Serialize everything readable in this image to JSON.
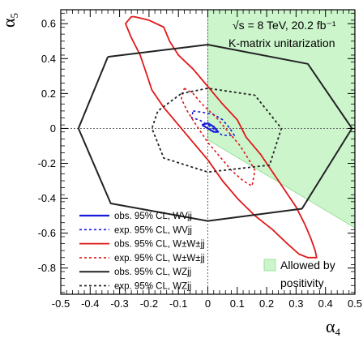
{
  "chart_data": {
    "type": "contour",
    "xlabel": "α4",
    "ylabel": "α5",
    "xlim": [
      -0.5,
      0.5
    ],
    "ylim": [
      -0.95,
      0.68
    ],
    "x_ticks": [
      -0.5,
      -0.4,
      -0.3,
      -0.2,
      -0.1,
      0,
      0.1,
      0.2,
      0.3,
      0.4,
      0.5
    ],
    "x_tick_labels": [
      "-0.5",
      "-0.4",
      "-0.3",
      "-0.2",
      "-0.1",
      "0",
      "0.1",
      "0.2",
      "0.3",
      "0.4",
      "0.5"
    ],
    "y_ticks": [
      -0.8,
      -0.6,
      -0.4,
      -0.2,
      0,
      0.2,
      0.4,
      0.6
    ],
    "y_tick_labels": [
      "-0.8",
      "-0.6",
      "-0.4",
      "-0.2",
      "0",
      "0.2",
      "0.4",
      "0.6"
    ],
    "annotations": {
      "energy": "√s = 8 TeV, 20.2 fb⁻¹",
      "method": "K-matrix unitarization",
      "allowed_label_1": "Allowed by",
      "allowed_label_2": "positivity"
    },
    "allowed_region": {
      "color": "#ccf5cc",
      "edge": "#8ed98e",
      "points": [
        [
          0,
          0.68
        ],
        [
          0.5,
          0.68
        ],
        [
          0.5,
          -0.57
        ],
        [
          0,
          -0.065
        ]
      ]
    },
    "series": [
      {
        "name": "obs. 95% CL, WVjj",
        "color": "#1a1adc",
        "dash": false,
        "width": 2.2,
        "points": [
          [
            -0.02,
            0.02
          ],
          [
            0,
            0.03
          ],
          [
            0.02,
            0.01
          ],
          [
            0.035,
            -0.02
          ],
          [
            0.02,
            -0.02
          ],
          [
            0,
            0.0
          ],
          [
            -0.02,
            0.02
          ]
        ]
      },
      {
        "name": "exp. 95% CL, WVjj",
        "color": "#1a1adc",
        "dash": true,
        "width": 1.6,
        "points": [
          [
            -0.05,
            0.1
          ],
          [
            -0.01,
            0.09
          ],
          [
            0.02,
            0.08
          ],
          [
            0.05,
            0.05
          ],
          [
            0.075,
            0.0
          ],
          [
            0.09,
            -0.04
          ],
          [
            0.05,
            -0.04
          ],
          [
            0.0,
            0.02
          ],
          [
            -0.03,
            0.05
          ],
          [
            -0.055,
            0.06
          ],
          [
            -0.05,
            0.1
          ]
        ]
      },
      {
        "name": "obs. 95% CL, W±W±jj",
        "color": "#e01818",
        "dash": false,
        "width": 1.8,
        "points": [
          [
            -0.25,
            0.64
          ],
          [
            -0.2,
            0.62
          ],
          [
            -0.15,
            0.58
          ],
          [
            -0.13,
            0.5
          ],
          [
            -0.1,
            0.42
          ],
          [
            -0.05,
            0.34
          ],
          [
            0.0,
            0.24
          ],
          [
            0.05,
            0.14
          ],
          [
            0.1,
            0.05
          ],
          [
            0.13,
            -0.05
          ],
          [
            0.18,
            -0.15
          ],
          [
            0.22,
            -0.25
          ],
          [
            0.26,
            -0.35
          ],
          [
            0.3,
            -0.45
          ],
          [
            0.33,
            -0.55
          ],
          [
            0.35,
            -0.63
          ],
          [
            0.365,
            -0.7
          ],
          [
            0.37,
            -0.74
          ],
          [
            0.34,
            -0.74
          ],
          [
            0.31,
            -0.72
          ],
          [
            0.27,
            -0.66
          ],
          [
            0.22,
            -0.58
          ],
          [
            0.16,
            -0.5
          ],
          [
            0.1,
            -0.4
          ],
          [
            0.05,
            -0.3
          ],
          [
            0.0,
            -0.18
          ],
          [
            -0.05,
            -0.08
          ],
          [
            -0.1,
            0.02
          ],
          [
            -0.15,
            0.12
          ],
          [
            -0.19,
            0.22
          ],
          [
            -0.21,
            0.32
          ],
          [
            -0.23,
            0.42
          ],
          [
            -0.26,
            0.52
          ],
          [
            -0.28,
            0.6
          ],
          [
            -0.26,
            0.64
          ],
          [
            -0.25,
            0.64
          ]
        ]
      },
      {
        "name": "exp. 95% CL, W±W±jj",
        "color": "#e01818",
        "dash": true,
        "width": 1.6,
        "points": [
          [
            -0.08,
            0.23
          ],
          [
            -0.05,
            0.2
          ],
          [
            -0.02,
            0.14
          ],
          [
            0.03,
            0.06
          ],
          [
            0.07,
            -0.02
          ],
          [
            0.11,
            -0.1
          ],
          [
            0.14,
            -0.18
          ],
          [
            0.16,
            -0.24
          ],
          [
            0.15,
            -0.33
          ],
          [
            0.12,
            -0.3
          ],
          [
            0.08,
            -0.24
          ],
          [
            0.04,
            -0.16
          ],
          [
            0.0,
            -0.08
          ],
          [
            -0.04,
            0.02
          ],
          [
            -0.07,
            0.1
          ],
          [
            -0.09,
            0.17
          ],
          [
            -0.08,
            0.23
          ]
        ]
      },
      {
        "name": "obs. 95% CL, WZjj",
        "color": "#222222",
        "dash": false,
        "width": 2.0,
        "points": [
          [
            -0.34,
            0.41
          ],
          [
            0.0,
            0.48
          ],
          [
            0.34,
            0.37
          ],
          [
            0.49,
            0.0
          ],
          [
            0.32,
            -0.46
          ],
          [
            0.0,
            -0.53
          ],
          [
            -0.33,
            -0.43
          ],
          [
            -0.44,
            0.0
          ],
          [
            -0.34,
            0.41
          ]
        ]
      },
      {
        "name": "exp. 95% CL, WZjj",
        "color": "#222222",
        "dash": true,
        "width": 1.8,
        "points": [
          [
            -0.09,
            0.2
          ],
          [
            0.0,
            0.23
          ],
          [
            0.16,
            0.19
          ],
          [
            0.25,
            0.0
          ],
          [
            0.21,
            -0.21
          ],
          [
            0.0,
            -0.25
          ],
          [
            -0.15,
            -0.17
          ],
          [
            -0.19,
            0.0
          ],
          [
            -0.17,
            0.1
          ],
          [
            -0.09,
            0.2
          ]
        ]
      }
    ],
    "legend": [
      {
        "label": "obs. 95% CL, WVjj",
        "series": 0
      },
      {
        "label": "exp. 95% CL, WVjj",
        "series": 1
      },
      {
        "label": "obs. 95% CL, W±W±jj",
        "series": 2
      },
      {
        "label": "exp. 95% CL, W±W±jj",
        "series": 3
      },
      {
        "label": "obs. 95% CL, WZjj",
        "series": 4
      },
      {
        "label": "exp. 95% CL, WZjj",
        "series": 5
      }
    ]
  }
}
